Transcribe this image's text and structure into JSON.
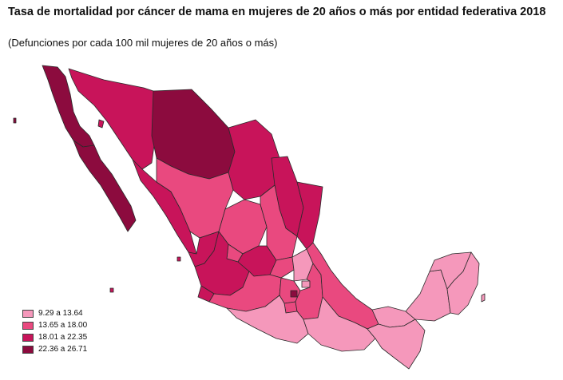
{
  "title": "Tasa de mortalidad por cáncer de mama en mujeres de 20 años o más por entidad federativa 2018",
  "subtitle": "(Defunciones por cada 100 mil mujeres de 20 años o más)",
  "legend": [
    {
      "label": "9.29 a 13.64",
      "color": "#f598bb"
    },
    {
      "label": "13.65 a 18.00",
      "color": "#e9497f"
    },
    {
      "label": "18.01 a 22.35",
      "color": "#c8145a"
    },
    {
      "label": "22.36 a 26.71",
      "color": "#8c0b3e"
    }
  ]
}
